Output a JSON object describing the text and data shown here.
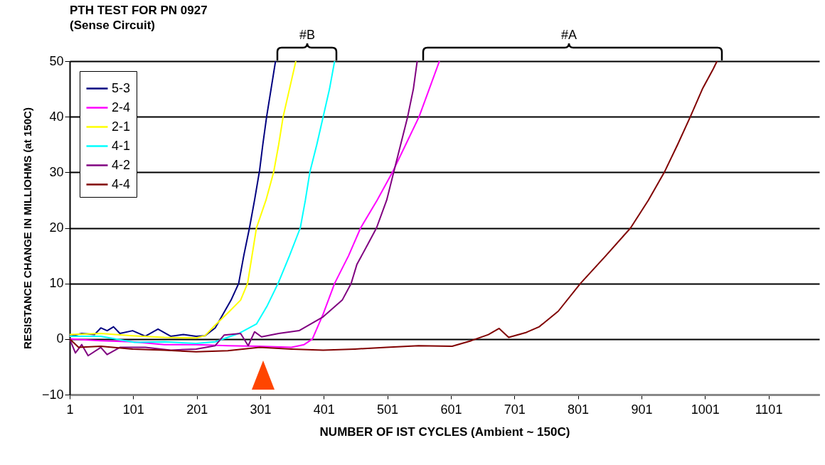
{
  "chart_data": {
    "type": "line",
    "title": "PTH TEST FOR PN 0927",
    "subtitle": "(Sense Circuit)",
    "xlabel": "NUMBER OF IST CYCLES (Ambient ~ 150C)",
    "ylabel": "RESISTANCE CHANGE IN MILLIOHMS (at 150C)",
    "xlim": [
      1,
      1181
    ],
    "xticks": [
      1,
      101,
      201,
      301,
      401,
      501,
      601,
      701,
      801,
      901,
      1001,
      1101
    ],
    "ylim": [
      -10,
      50
    ],
    "yticks": [
      -10,
      0,
      10,
      20,
      30,
      40,
      50
    ],
    "grid": "y",
    "legend": "top left",
    "series": [
      {
        "name": "5-3",
        "color": "#000080",
        "x": [
          1,
          20,
          40,
          50,
          60,
          70,
          80,
          100,
          120,
          140,
          160,
          180,
          200,
          214,
          230,
          244,
          255,
          267,
          275,
          284,
          292,
          300,
          305,
          311,
          318,
          325
        ],
        "values": [
          0.5,
          1,
          0.8,
          2,
          1.5,
          2.2,
          1,
          1.5,
          0.5,
          1.8,
          0.5,
          0.8,
          0.5,
          0.6,
          2,
          4.8,
          7,
          10,
          15,
          20,
          25,
          30.4,
          35,
          40,
          45,
          50
        ]
      },
      {
        "name": "2-4",
        "color": "#ff00ff",
        "x": [
          1,
          50,
          100,
          150,
          200,
          250,
          300,
          350,
          370,
          383,
          400,
          418,
          440,
          459,
          485,
          509,
          530,
          551,
          567,
          583
        ],
        "values": [
          0,
          -0.3,
          -0.5,
          -1,
          -1,
          -1.2,
          -1.3,
          -1.5,
          -1,
          0,
          4.5,
          10,
          15,
          20,
          25,
          30,
          35,
          40,
          45,
          50
        ]
      },
      {
        "name": "2-1",
        "color": "#ffff00",
        "x": [
          1,
          50,
          100,
          150,
          200,
          214,
          230,
          251,
          270,
          281,
          288,
          295,
          310,
          322,
          330,
          337,
          345,
          357
        ],
        "values": [
          0.8,
          1,
          0.6,
          0.3,
          0.2,
          0.6,
          2.5,
          4.8,
          7,
          10,
          15,
          20,
          25,
          30,
          35,
          40,
          44,
          50
        ]
      },
      {
        "name": "4-1",
        "color": "#00ffff",
        "x": [
          1,
          50,
          103,
          150,
          200,
          230,
          267,
          295,
          312,
          329,
          347,
          364,
          372,
          379,
          390,
          400,
          410,
          418
        ],
        "values": [
          0.5,
          0.5,
          -0.6,
          -0.5,
          -0.8,
          -0.5,
          1,
          2.7,
          6,
          10,
          15,
          20,
          25,
          30,
          35,
          40,
          45,
          50
        ]
      },
      {
        "name": "4-2",
        "color": "#800080",
        "x": [
          1,
          10,
          20,
          30,
          50,
          60,
          80,
          120,
          160,
          200,
          230,
          244,
          270,
          282,
          292,
          303,
          330,
          362,
          400,
          430,
          444,
          453,
          470,
          484,
          500,
          511,
          522,
          533,
          542,
          548
        ],
        "values": [
          0,
          -2.5,
          -1,
          -3,
          -1.5,
          -2.8,
          -1.5,
          -1.5,
          -2,
          -1.8,
          -1.2,
          0.7,
          1,
          -1.2,
          1.3,
          0.4,
          1,
          1.5,
          4,
          7,
          10,
          13.4,
          17,
          20,
          25,
          30,
          35,
          40,
          45,
          50
        ]
      },
      {
        "name": "4-4",
        "color": "#800000",
        "x": [
          1,
          15,
          50,
          100,
          150,
          200,
          250,
          300,
          350,
          400,
          450,
          500,
          550,
          603,
          633,
          660,
          677,
          692,
          720,
          740,
          770,
          805,
          845,
          884,
          912,
          937,
          958,
          978,
          997,
          1014,
          1020
        ],
        "values": [
          0,
          -1.5,
          -1.3,
          -1.8,
          -2,
          -2.3,
          -2.1,
          -1.5,
          -1.8,
          -2,
          -1.8,
          -1.5,
          -1.2,
          -1.3,
          -0.3,
          0.8,
          1.9,
          0.3,
          1.2,
          2.2,
          5,
          10,
          15,
          20,
          25,
          30,
          35,
          40,
          45,
          48.6,
          50
        ]
      }
    ],
    "annotations": [
      "#B",
      "#A"
    ]
  }
}
